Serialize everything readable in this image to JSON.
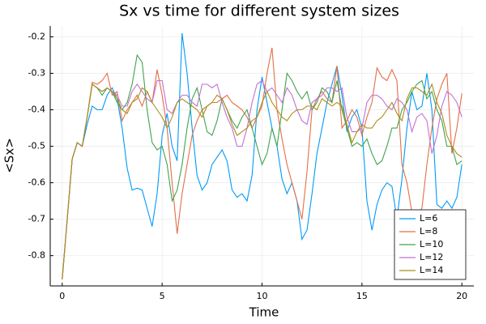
{
  "chart_data": {
    "type": "line",
    "title": "Sx vs time for different system sizes",
    "x_label": "Time",
    "y_label": "<Sx>",
    "x": [
      0,
      0.25,
      0.5,
      0.75,
      1,
      1.25,
      1.5,
      1.75,
      2,
      2.25,
      2.5,
      2.75,
      3,
      3.25,
      3.5,
      3.75,
      4,
      4.25,
      4.5,
      4.75,
      5,
      5.25,
      5.5,
      5.75,
      6,
      6.25,
      6.5,
      6.75,
      7,
      7.25,
      7.5,
      7.75,
      8,
      8.25,
      8.5,
      8.75,
      9,
      9.25,
      9.5,
      9.75,
      10,
      10.25,
      10.5,
      10.75,
      11,
      11.25,
      11.5,
      11.75,
      12,
      12.25,
      12.5,
      12.75,
      13,
      13.25,
      13.5,
      13.75,
      14,
      14.25,
      14.5,
      14.75,
      15,
      15.25,
      15.5,
      15.75,
      16,
      16.25,
      16.5,
      16.75,
      17,
      17.25,
      17.5,
      17.75,
      18,
      18.25,
      18.5,
      18.75,
      19,
      19.25,
      19.5,
      19.75,
      20
    ],
    "series": [
      {
        "name": "L=6",
        "color": "#009afa",
        "values": [
          -0.865,
          -0.7,
          -0.535,
          -0.49,
          -0.5,
          -0.44,
          -0.39,
          -0.4,
          -0.4,
          -0.36,
          -0.34,
          -0.37,
          -0.45,
          -0.56,
          -0.62,
          -0.615,
          -0.62,
          -0.67,
          -0.72,
          -0.63,
          -0.47,
          -0.41,
          -0.5,
          -0.54,
          -0.19,
          -0.3,
          -0.45,
          -0.58,
          -0.62,
          -0.6,
          -0.55,
          -0.53,
          -0.51,
          -0.54,
          -0.62,
          -0.64,
          -0.63,
          -0.65,
          -0.58,
          -0.4,
          -0.31,
          -0.38,
          -0.45,
          -0.5,
          -0.59,
          -0.63,
          -0.6,
          -0.65,
          -0.755,
          -0.73,
          -0.63,
          -0.52,
          -0.45,
          -0.38,
          -0.33,
          -0.28,
          -0.36,
          -0.46,
          -0.42,
          -0.4,
          -0.45,
          -0.65,
          -0.73,
          -0.66,
          -0.62,
          -0.6,
          -0.61,
          -0.7,
          -0.59,
          -0.45,
          -0.35,
          -0.4,
          -0.39,
          -0.3,
          -0.4,
          -0.66,
          -0.67,
          -0.65,
          -0.67,
          -0.64,
          -0.55
        ]
      },
      {
        "name": "L=8",
        "color": "#e36f47",
        "values": [
          -0.865,
          -0.7,
          -0.535,
          -0.49,
          -0.5,
          -0.42,
          -0.325,
          -0.33,
          -0.32,
          -0.3,
          -0.36,
          -0.35,
          -0.43,
          -0.4,
          -0.38,
          -0.36,
          -0.39,
          -0.35,
          -0.38,
          -0.29,
          -0.36,
          -0.45,
          -0.6,
          -0.74,
          -0.63,
          -0.55,
          -0.47,
          -0.43,
          -0.4,
          -0.39,
          -0.38,
          -0.38,
          -0.37,
          -0.36,
          -0.38,
          -0.39,
          -0.4,
          -0.42,
          -0.45,
          -0.42,
          -0.39,
          -0.3,
          -0.23,
          -0.4,
          -0.48,
          -0.55,
          -0.6,
          -0.65,
          -0.7,
          -0.57,
          -0.4,
          -0.37,
          -0.35,
          -0.37,
          -0.38,
          -0.28,
          -0.45,
          -0.43,
          -0.4,
          -0.42,
          -0.47,
          -0.42,
          -0.38,
          -0.285,
          -0.31,
          -0.32,
          -0.29,
          -0.32,
          -0.55,
          -0.6,
          -0.68,
          -0.69,
          -0.67,
          -0.55,
          -0.45,
          -0.37,
          -0.33,
          -0.3,
          -0.52,
          -0.45,
          -0.355
        ]
      },
      {
        "name": "L=10",
        "color": "#3ea44e",
        "values": [
          -0.865,
          -0.7,
          -0.535,
          -0.49,
          -0.5,
          -0.42,
          -0.33,
          -0.34,
          -0.36,
          -0.34,
          -0.35,
          -0.38,
          -0.4,
          -0.38,
          -0.33,
          -0.25,
          -0.27,
          -0.4,
          -0.49,
          -0.51,
          -0.5,
          -0.55,
          -0.65,
          -0.62,
          -0.55,
          -0.45,
          -0.37,
          -0.34,
          -0.4,
          -0.46,
          -0.47,
          -0.43,
          -0.37,
          -0.4,
          -0.43,
          -0.45,
          -0.42,
          -0.4,
          -0.45,
          -0.5,
          -0.55,
          -0.52,
          -0.45,
          -0.5,
          -0.4,
          -0.3,
          -0.32,
          -0.35,
          -0.37,
          -0.35,
          -0.4,
          -0.38,
          -0.34,
          -0.35,
          -0.38,
          -0.32,
          -0.4,
          -0.45,
          -0.5,
          -0.49,
          -0.5,
          -0.48,
          -0.52,
          -0.55,
          -0.54,
          -0.5,
          -0.45,
          -0.45,
          -0.4,
          -0.38,
          -0.35,
          -0.33,
          -0.32,
          -0.37,
          -0.35,
          -0.4,
          -0.43,
          -0.5,
          -0.5,
          -0.55,
          -0.54
        ]
      },
      {
        "name": "L=12",
        "color": "#c271d2",
        "values": [
          -0.865,
          -0.7,
          -0.535,
          -0.49,
          -0.5,
          -0.42,
          -0.33,
          -0.34,
          -0.35,
          -0.34,
          -0.35,
          -0.36,
          -0.39,
          -0.39,
          -0.35,
          -0.33,
          -0.35,
          -0.37,
          -0.38,
          -0.32,
          -0.32,
          -0.4,
          -0.41,
          -0.38,
          -0.36,
          -0.36,
          -0.38,
          -0.39,
          -0.33,
          -0.33,
          -0.34,
          -0.33,
          -0.38,
          -0.42,
          -0.45,
          -0.5,
          -0.5,
          -0.45,
          -0.38,
          -0.33,
          -0.32,
          -0.35,
          -0.34,
          -0.36,
          -0.38,
          -0.34,
          -0.36,
          -0.4,
          -0.43,
          -0.44,
          -0.38,
          -0.37,
          -0.36,
          -0.34,
          -0.34,
          -0.35,
          -0.34,
          -0.42,
          -0.46,
          -0.46,
          -0.45,
          -0.38,
          -0.36,
          -0.36,
          -0.37,
          -0.39,
          -0.4,
          -0.37,
          -0.38,
          -0.4,
          -0.46,
          -0.42,
          -0.41,
          -0.43,
          -0.52,
          -0.47,
          -0.39,
          -0.35,
          -0.36,
          -0.38,
          -0.42
        ]
      },
      {
        "name": "L=14",
        "color": "#ac8e18",
        "values": [
          -0.865,
          -0.7,
          -0.535,
          -0.49,
          -0.5,
          -0.42,
          -0.33,
          -0.34,
          -0.35,
          -0.34,
          -0.35,
          -0.37,
          -0.4,
          -0.41,
          -0.38,
          -0.37,
          -0.34,
          -0.35,
          -0.38,
          -0.4,
          -0.42,
          -0.45,
          -0.42,
          -0.38,
          -0.37,
          -0.38,
          -0.39,
          -0.4,
          -0.42,
          -0.39,
          -0.38,
          -0.36,
          -0.37,
          -0.4,
          -0.44,
          -0.47,
          -0.46,
          -0.45,
          -0.43,
          -0.42,
          -0.38,
          -0.35,
          -0.38,
          -0.4,
          -0.42,
          -0.43,
          -0.41,
          -0.4,
          -0.4,
          -0.39,
          -0.39,
          -0.4,
          -0.37,
          -0.38,
          -0.39,
          -0.38,
          -0.39,
          -0.44,
          -0.49,
          -0.46,
          -0.44,
          -0.45,
          -0.45,
          -0.43,
          -0.42,
          -0.4,
          -0.38,
          -0.41,
          -0.43,
          -0.37,
          -0.34,
          -0.34,
          -0.35,
          -0.36,
          -0.33,
          -0.38,
          -0.41,
          -0.47,
          -0.5,
          -0.52,
          -0.53
        ]
      }
    ],
    "xlim": [
      -0.6,
      20.6
    ],
    "xticks": [
      0,
      5,
      10,
      15,
      20
    ],
    "ylim": [
      -0.883,
      -0.17
    ],
    "yticks": [
      -0.8,
      -0.7,
      -0.6,
      -0.5,
      -0.4,
      -0.3,
      -0.2
    ],
    "grid": true,
    "legend": "bottom-right"
  }
}
